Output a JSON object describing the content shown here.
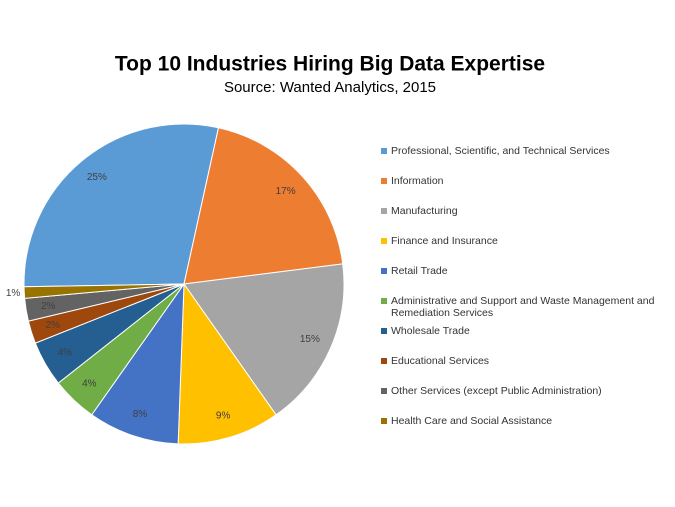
{
  "chart_data": {
    "type": "pie",
    "title": "Top 10 Industries Hiring Big Data Expertise",
    "subtitle": "Source: Wanted Analytics, 2015",
    "categories": [
      "Professional, Scientific, and Technical Services",
      "Information",
      "Manufacturing",
      "Finance and Insurance",
      "Retail Trade",
      "Administrative and Support and Waste Management and Remediation Services",
      "Wholesale Trade",
      "Educational Services",
      "Other Services (except Public Administration)",
      "Health Care and Social Assistance"
    ],
    "values": [
      25,
      17,
      15,
      9,
      8,
      4,
      4,
      2,
      2,
      1
    ],
    "value_labels": [
      "25%",
      "17%",
      "15%",
      "9%",
      "8%",
      "4%",
      "4%",
      "2%",
      "2%",
      "1%"
    ],
    "colors": [
      "#5b9bd5",
      "#ed7d31",
      "#a5a5a5",
      "#ffc000",
      "#4472c4",
      "#70ad47",
      "#255e91",
      "#9e480e",
      "#636363",
      "#997300"
    ],
    "legend": "right"
  }
}
